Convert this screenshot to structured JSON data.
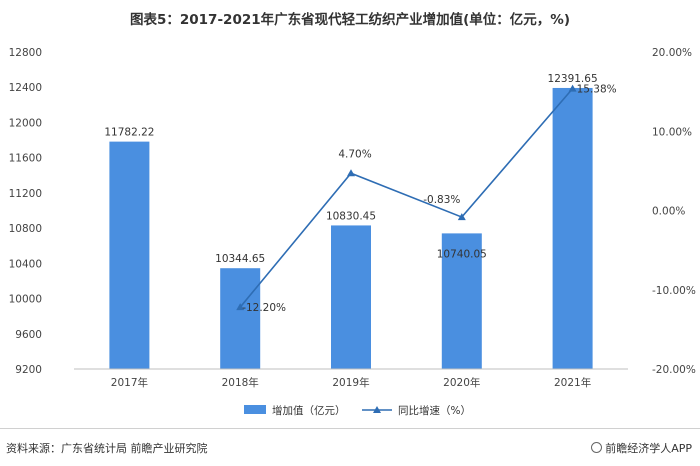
{
  "page_title": "图表5：2017-2021年广东省现代轻工纺织产业增加值(单位：亿元，%)",
  "source_text": "资料来源：广东省统计局 前瞻产业研究院",
  "brand_text": "前瞻经济学人APP",
  "chart_data": {
    "type": "bar",
    "title": "图表5：2017-2021年广东省现代轻工纺织产业增加值(单位：亿元，%)",
    "categories": [
      "2017年",
      "2018年",
      "2019年",
      "2020年",
      "2021年"
    ],
    "series": [
      {
        "name": "增加值（亿元）",
        "type": "bar",
        "axis": "left",
        "values": [
          11782.22,
          10344.65,
          10830.45,
          10740.05,
          12391.65
        ],
        "labels": [
          "11782.22",
          "10344.65",
          "10830.45",
          "10740.05",
          "12391.65"
        ],
        "color": "#4a8fe0"
      },
      {
        "name": "同比增速（%）",
        "type": "line",
        "axis": "right",
        "values": [
          null,
          -12.2,
          4.7,
          -0.83,
          15.38
        ],
        "labels": [
          "",
          "-12.20%",
          "4.70%",
          "-0.83%",
          "15.38%"
        ],
        "color": "#2e6db4"
      }
    ],
    "y_left": {
      "ylim": [
        9200,
        12800
      ],
      "ticks": [
        "9200",
        "9600",
        "10000",
        "10400",
        "10800",
        "11200",
        "11600",
        "12000",
        "12400",
        "12800"
      ]
    },
    "y_right": {
      "ylim": [
        -20,
        20
      ],
      "ticks": [
        "-20.00%",
        "-10.00%",
        "0.00%",
        "10.00%",
        "20.00%"
      ]
    },
    "grid": false,
    "legend_position": "bottom"
  }
}
